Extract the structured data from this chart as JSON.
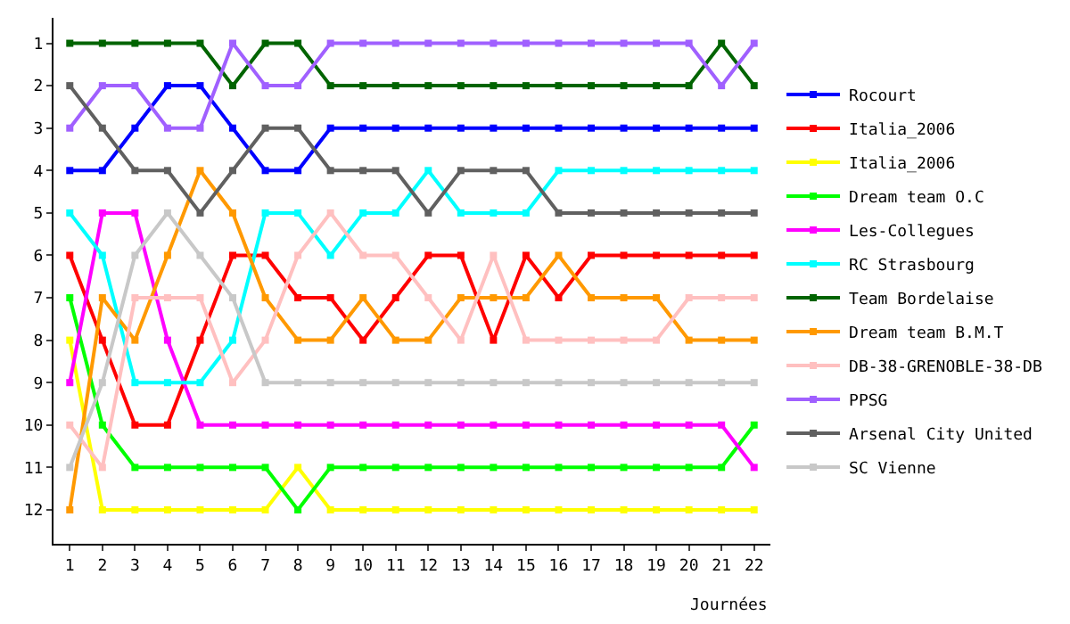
{
  "chart_data": {
    "type": "line",
    "xlabel": "Journées",
    "marker": "square",
    "legend": "right",
    "x": [
      1,
      2,
      3,
      4,
      5,
      6,
      7,
      8,
      9,
      10,
      11,
      12,
      13,
      14,
      15,
      16,
      17,
      18,
      19,
      20,
      21,
      22
    ],
    "xlim": [
      0.5,
      22.5
    ],
    "xticks": [
      1,
      2,
      3,
      4,
      5,
      6,
      7,
      8,
      9,
      10,
      11,
      12,
      13,
      14,
      15,
      16,
      17,
      18,
      19,
      20,
      21,
      22
    ],
    "ylim": [
      12.8,
      0.4
    ],
    "yticks": [
      1,
      2,
      3,
      4,
      5,
      6,
      7,
      8,
      9,
      10,
      11,
      12
    ],
    "series": [
      {
        "name": "Rocourt",
        "color": "#0000ff",
        "values": [
          4,
          4,
          3,
          2,
          2,
          3,
          4,
          4,
          3,
          3,
          3,
          3,
          3,
          3,
          3,
          3,
          3,
          3,
          3,
          3,
          3,
          3
        ]
      },
      {
        "name": "Italia_2006",
        "color": "#ff0000",
        "values": [
          6,
          8,
          10,
          10,
          8,
          6,
          6,
          7,
          7,
          8,
          7,
          6,
          6,
          8,
          6,
          7,
          6,
          6,
          6,
          6,
          6,
          6
        ]
      },
      {
        "name": "Italia_2006",
        "color": "#ffff00",
        "values": [
          8,
          12,
          12,
          12,
          12,
          12,
          12,
          11,
          12,
          12,
          12,
          12,
          12,
          12,
          12,
          12,
          12,
          12,
          12,
          12,
          12,
          12
        ]
      },
      {
        "name": "Dream team O.C",
        "color": "#00ff00",
        "values": [
          7,
          10,
          11,
          11,
          11,
          11,
          11,
          12,
          11,
          11,
          11,
          11,
          11,
          11,
          11,
          11,
          11,
          11,
          11,
          11,
          11,
          10
        ]
      },
      {
        "name": "Les-Collegues",
        "color": "#ff00ff",
        "values": [
          9,
          5,
          5,
          8,
          10,
          10,
          10,
          10,
          10,
          10,
          10,
          10,
          10,
          10,
          10,
          10,
          10,
          10,
          10,
          10,
          10,
          11
        ]
      },
      {
        "name": "RC Strasbourg",
        "color": "#00ffff",
        "values": [
          5,
          6,
          9,
          9,
          9,
          8,
          5,
          5,
          6,
          5,
          5,
          4,
          5,
          5,
          5,
          4,
          4,
          4,
          4,
          4,
          4,
          4
        ]
      },
      {
        "name": "Team Bordelaise",
        "color": "#006400",
        "values": [
          1,
          1,
          1,
          1,
          1,
          2,
          1,
          1,
          2,
          2,
          2,
          2,
          2,
          2,
          2,
          2,
          2,
          2,
          2,
          2,
          1,
          2
        ]
      },
      {
        "name": "Dream team B.M.T",
        "color": "#ff9900",
        "values": [
          12,
          7,
          8,
          6,
          4,
          5,
          7,
          8,
          8,
          7,
          8,
          8,
          7,
          7,
          7,
          6,
          7,
          7,
          7,
          8,
          8,
          8
        ]
      },
      {
        "name": "DB-38-GRENOBLE-38-DB",
        "color": "#ffc0c0",
        "values": [
          10,
          11,
          7,
          7,
          7,
          9,
          8,
          6,
          5,
          6,
          6,
          7,
          8,
          6,
          8,
          8,
          8,
          8,
          8,
          7,
          7,
          7
        ]
      },
      {
        "name": "PPSG",
        "color": "#a060ff",
        "values": [
          3,
          2,
          2,
          3,
          3,
          1,
          2,
          2,
          1,
          1,
          1,
          1,
          1,
          1,
          1,
          1,
          1,
          1,
          1,
          1,
          2,
          1
        ]
      },
      {
        "name": "Arsenal City United",
        "color": "#606060",
        "values": [
          2,
          3,
          4,
          4,
          5,
          4,
          3,
          3,
          4,
          4,
          4,
          5,
          4,
          4,
          4,
          5,
          5,
          5,
          5,
          5,
          5,
          5
        ]
      },
      {
        "name": "SC Vienne",
        "color": "#c8c8c8",
        "values": [
          11,
          9,
          6,
          5,
          6,
          7,
          9,
          9,
          9,
          9,
          9,
          9,
          9,
          9,
          9,
          9,
          9,
          9,
          9,
          9,
          9,
          9
        ]
      }
    ]
  }
}
